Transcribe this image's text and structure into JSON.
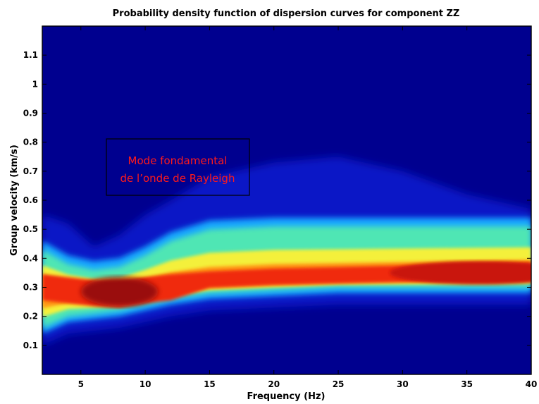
{
  "chart_data": {
    "type": "heatmap",
    "title": "Probability density function of dispersion curves for component ZZ",
    "xlabel": "Frequency (Hz)",
    "ylabel": "Group velocity (km/s)",
    "xlim": [
      2,
      40
    ],
    "ylim": [
      0,
      1.2
    ],
    "xticks": [
      5,
      10,
      15,
      20,
      25,
      30,
      35,
      40
    ],
    "yticks": [
      0.1,
      0.2,
      0.3,
      0.4,
      0.5,
      0.6,
      0.7,
      0.8,
      0.9,
      1,
      1.1
    ],
    "colormap": "jet",
    "background_color": "#00008f",
    "annotation": {
      "lines": [
        "Mode fondamental",
        "de l’onde de Rayleigh"
      ],
      "color": "#ff1a1a",
      "box_color": "#000000"
    },
    "density_ridge": {
      "description_points_x_hz": [
        2,
        4,
        6,
        8,
        10,
        12,
        15,
        20,
        25,
        30,
        35,
        40
      ],
      "peak_velocity_km_s": [
        0.31,
        0.3,
        0.29,
        0.285,
        0.3,
        0.31,
        0.32,
        0.33,
        0.335,
        0.34,
        0.345,
        0.35
      ],
      "lower_edge_km_s": [
        0.16,
        0.2,
        0.21,
        0.22,
        0.24,
        0.26,
        0.28,
        0.29,
        0.3,
        0.3,
        0.3,
        0.3
      ],
      "upper_edge_km_s": [
        0.43,
        0.38,
        0.36,
        0.37,
        0.41,
        0.46,
        0.5,
        0.51,
        0.51,
        0.51,
        0.51,
        0.51
      ],
      "halo_upper_km_s": [
        0.55,
        0.52,
        0.44,
        0.48,
        0.55,
        0.6,
        0.68,
        0.73,
        0.75,
        0.7,
        0.62,
        0.57
      ]
    }
  }
}
